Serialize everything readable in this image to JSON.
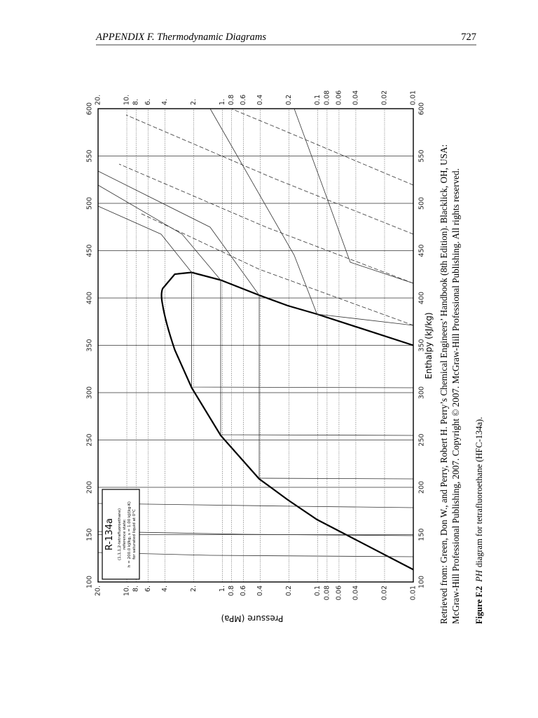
{
  "header": {
    "title": "APPENDIX F.  Thermodynamic Diagrams",
    "page": "727"
  },
  "figure": {
    "x_label": "Enthalpy (kJ/kg)",
    "y_label": "Pressure (MPa)",
    "xlim": [
      100,
      600
    ],
    "xticks": [
      100,
      150,
      200,
      250,
      300,
      350,
      400,
      450,
      500,
      550,
      600
    ],
    "ylim": [
      0.01,
      20
    ],
    "log_y": true,
    "yticks": [
      {
        "value": 20,
        "label": "20."
      },
      {
        "value": 10,
        "label": "10."
      },
      {
        "value": 8,
        "label": "8."
      },
      {
        "value": 6,
        "label": "6."
      },
      {
        "value": 4,
        "label": "4."
      },
      {
        "value": 2,
        "label": "2."
      },
      {
        "value": 1,
        "label": "1."
      },
      0.8,
      0.6,
      0.4,
      0.2,
      0.1,
      0.08,
      0.06,
      0.04,
      0.02,
      0.01
    ],
    "legend_box": {
      "title": "R-134a",
      "lines": [
        "(1,1,1,2-tetrafluoroethane)",
        "reference state:",
        "h = 200.0 kJ/kg, s = 1.00 kJ/(kg·K)",
        "for saturated liquid at 0°C"
      ]
    }
  },
  "credit": [
    "Retrieved from: Green, Don W., and Perry, Robert H. Perry’s Chemical Engineers’ Handbook (8th Edition). Blacklick, OH, USA:",
    "McGraw-Hill Professional Publishing, 2007. Copyright © 2007. McGraw-Hill Professional Publishing. All rights reserved."
  ],
  "caption": {
    "label": "Figure F.2",
    "emphasis": "PH",
    "text": "diagram for tetrafluoroethane (HFC-134a)."
  }
}
